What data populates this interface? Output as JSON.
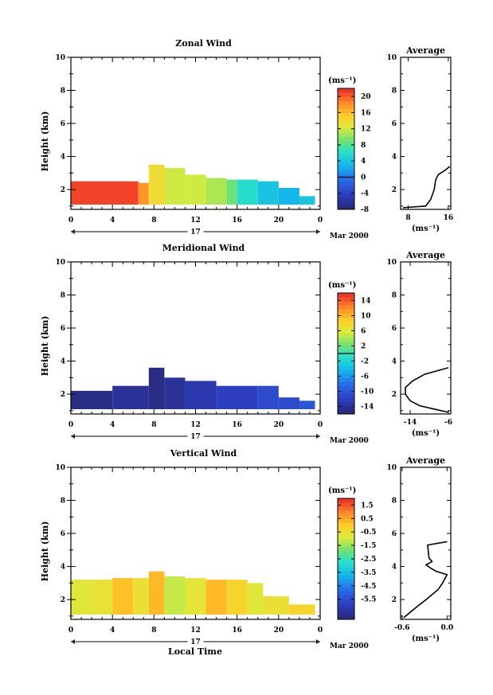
{
  "figure": {
    "x_axis_label": "Local Time",
    "date_label": "Mar 2000",
    "day_label": "17"
  },
  "chart_data": [
    {
      "type": "heatmap",
      "title": "Zonal Wind",
      "ylabel": "Height (km)",
      "xlim": [
        0,
        24
      ],
      "ylim": [
        0.8,
        10
      ],
      "xticks": [
        "0",
        "4",
        "8",
        "12",
        "16",
        "20",
        "0"
      ],
      "yticks": [
        "2",
        "4",
        "6",
        "8",
        "10"
      ],
      "colorbar": {
        "unit": "(ms⁻¹)",
        "min": -8,
        "max": 22,
        "ticks": [
          "20",
          "16",
          "12",
          "8",
          "4",
          "0",
          "-4",
          "-8"
        ],
        "tick_values": [
          20,
          16,
          12,
          8,
          4,
          0,
          -4,
          -8
        ],
        "marker_value": 0
      },
      "blocks": [
        {
          "x": [
            0.0,
            6.5
          ],
          "top": 2.5,
          "value": 21
        },
        {
          "x": [
            6.5,
            7.5
          ],
          "top": 2.4,
          "value": 18
        },
        {
          "x": [
            7.5,
            9.0
          ],
          "top": 3.5,
          "value": 14
        },
        {
          "x": [
            9.0,
            11.0
          ],
          "top": 3.3,
          "value": 12
        },
        {
          "x": [
            11.0,
            13.0
          ],
          "top": 2.9,
          "value": 12
        },
        {
          "x": [
            13.0,
            15.0
          ],
          "top": 2.7,
          "value": 11
        },
        {
          "x": [
            15.0,
            16.0
          ],
          "top": 2.6,
          "value": 9
        },
        {
          "x": [
            16.0,
            18.0
          ],
          "top": 2.6,
          "value": 6
        },
        {
          "x": [
            18.0,
            20.0
          ],
          "top": 2.5,
          "value": 4
        },
        {
          "x": [
            20.0,
            22.0
          ],
          "top": 2.1,
          "value": 3
        },
        {
          "x": [
            22.0,
            23.5
          ],
          "top": 1.6,
          "value": 4
        }
      ],
      "average": {
        "title": "Average",
        "xticks": [
          "8",
          "16"
        ],
        "xtick_values": [
          8,
          16
        ],
        "xlim": [
          6.5,
          16.5
        ],
        "xunit": "(ms⁻¹)",
        "yticks": [
          "2",
          "4",
          "6",
          "8",
          "10"
        ],
        "profile": [
          {
            "h": 0.9,
            "v": 7.0
          },
          {
            "h": 1.0,
            "v": 11.5
          },
          {
            "h": 1.4,
            "v": 12.5
          },
          {
            "h": 2.0,
            "v": 13.2
          },
          {
            "h": 2.6,
            "v": 13.5
          },
          {
            "h": 2.9,
            "v": 14.0
          },
          {
            "h": 3.2,
            "v": 15.5
          },
          {
            "h": 3.4,
            "v": 16.3
          }
        ]
      }
    },
    {
      "type": "heatmap",
      "title": "Meridional Wind",
      "ylabel": "Height (km)",
      "xlim": [
        0,
        24
      ],
      "ylim": [
        0.8,
        10
      ],
      "xticks": [
        "0",
        "4",
        "8",
        "12",
        "16",
        "20",
        "0"
      ],
      "yticks": [
        "2",
        "4",
        "6",
        "8",
        "10"
      ],
      "colorbar": {
        "unit": "(ms⁻¹)",
        "min": -16,
        "max": 16,
        "ticks": [
          "14",
          "10",
          "6",
          "2",
          "-2",
          "-6",
          "-10",
          "-14"
        ],
        "tick_values": [
          14,
          10,
          6,
          2,
          -2,
          -6,
          -10,
          -14
        ],
        "marker_value": 0
      },
      "blocks": [
        {
          "x": [
            0.0,
            4.0
          ],
          "top": 2.2,
          "value": -15
        },
        {
          "x": [
            4.0,
            7.5
          ],
          "top": 2.5,
          "value": -14
        },
        {
          "x": [
            7.5,
            9.0
          ],
          "top": 3.6,
          "value": -15
        },
        {
          "x": [
            9.0,
            11.0
          ],
          "top": 3.0,
          "value": -14
        },
        {
          "x": [
            11.0,
            14.0
          ],
          "top": 2.8,
          "value": -13
        },
        {
          "x": [
            14.0,
            18.0
          ],
          "top": 2.5,
          "value": -12
        },
        {
          "x": [
            18.0,
            20.0
          ],
          "top": 2.5,
          "value": -11
        },
        {
          "x": [
            20.0,
            22.0
          ],
          "top": 1.8,
          "value": -11
        },
        {
          "x": [
            22.0,
            23.5
          ],
          "top": 1.6,
          "value": -10
        }
      ],
      "average": {
        "title": "Average",
        "xticks": [
          "-14",
          "-6"
        ],
        "xtick_values": [
          -14,
          -6
        ],
        "xlim": [
          -16,
          -5.5
        ],
        "xunit": "(ms⁻¹)",
        "yticks": [
          "2",
          "4",
          "6",
          "8",
          "10"
        ],
        "profile": [
          {
            "h": 0.9,
            "v": -6.0
          },
          {
            "h": 1.1,
            "v": -9.0
          },
          {
            "h": 1.3,
            "v": -12.0
          },
          {
            "h": 1.6,
            "v": -14.0
          },
          {
            "h": 2.0,
            "v": -15.0
          },
          {
            "h": 2.4,
            "v": -15.0
          },
          {
            "h": 2.8,
            "v": -13.5
          },
          {
            "h": 3.2,
            "v": -11.0
          },
          {
            "h": 3.4,
            "v": -8.5
          },
          {
            "h": 3.6,
            "v": -6.0
          }
        ]
      }
    },
    {
      "type": "heatmap",
      "title": "Vertical Wind",
      "ylabel": "Height (km)",
      "xlim": [
        0,
        24
      ],
      "ylim": [
        0.8,
        10
      ],
      "xticks": [
        "0",
        "4",
        "8",
        "12",
        "16",
        "20",
        "0"
      ],
      "yticks": [
        "2",
        "4",
        "6",
        "8",
        "10"
      ],
      "colorbar": {
        "unit": "(ms⁻¹)",
        "min": -7.0,
        "max": 2.0,
        "ticks": [
          "1.5",
          "0.5",
          "-0.5",
          "-1.5",
          "-2.5",
          "-3.5",
          "-4.5",
          "-5.5"
        ],
        "tick_values": [
          1.5,
          0.5,
          -0.5,
          -1.5,
          -2.5,
          -3.5,
          -4.5,
          -5.5
        ],
        "marker_value": null
      },
      "blocks": [
        {
          "x": [
            0.0,
            2.0
          ],
          "top": 3.2,
          "value": -0.8
        },
        {
          "x": [
            2.0,
            4.0
          ],
          "top": 3.2,
          "value": -0.6
        },
        {
          "x": [
            4.0,
            6.0
          ],
          "top": 3.3,
          "value": 0.2
        },
        {
          "x": [
            6.0,
            7.5
          ],
          "top": 3.3,
          "value": -0.5
        },
        {
          "x": [
            7.5,
            9.0
          ],
          "top": 3.7,
          "value": 0.3
        },
        {
          "x": [
            9.0,
            11.0
          ],
          "top": 3.4,
          "value": -1.1
        },
        {
          "x": [
            11.0,
            13.0
          ],
          "top": 3.3,
          "value": -0.7
        },
        {
          "x": [
            13.0,
            15.0
          ],
          "top": 3.2,
          "value": 0.3
        },
        {
          "x": [
            15.0,
            17.0
          ],
          "top": 3.2,
          "value": -0.2
        },
        {
          "x": [
            17.0,
            18.5
          ],
          "top": 3.0,
          "value": -0.8
        },
        {
          "x": [
            18.5,
            21.0
          ],
          "top": 2.2,
          "value": -0.5
        },
        {
          "x": [
            21.0,
            23.5
          ],
          "top": 1.7,
          "value": -0.2
        }
      ],
      "average": {
        "title": "Average",
        "xticks": [
          "-0.6",
          "0.0"
        ],
        "xtick_values": [
          -0.6,
          0.0
        ],
        "xlim": [
          -0.62,
          0.05
        ],
        "xunit": "(ms⁻¹)",
        "yticks": [
          "2",
          "4",
          "6",
          "8",
          "10"
        ],
        "profile": [
          {
            "h": 0.9,
            "v": -0.58
          },
          {
            "h": 1.5,
            "v": -0.42
          },
          {
            "h": 2.0,
            "v": -0.28
          },
          {
            "h": 2.6,
            "v": -0.12
          },
          {
            "h": 3.0,
            "v": -0.06
          },
          {
            "h": 3.5,
            "v": 0.0
          },
          {
            "h": 3.7,
            "v": -0.14
          },
          {
            "h": 3.9,
            "v": -0.22
          },
          {
            "h": 4.1,
            "v": -0.28
          },
          {
            "h": 4.3,
            "v": -0.2
          },
          {
            "h": 4.5,
            "v": -0.24
          },
          {
            "h": 5.3,
            "v": -0.26
          },
          {
            "h": 5.5,
            "v": 0.0
          }
        ]
      }
    }
  ]
}
